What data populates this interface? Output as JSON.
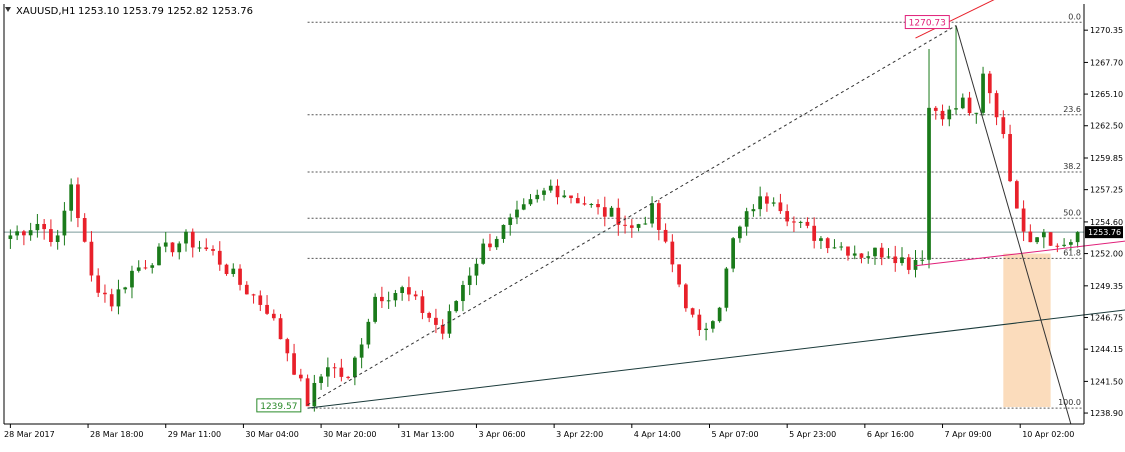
{
  "header": {
    "symbol": "XAUUSD,H1",
    "ohlc": "1253.10 1253.79 1252.82 1253.76"
  },
  "colors": {
    "bull": "#1a7a1a",
    "bear": "#e8202a",
    "fib": "#555555",
    "channel_upper": "#e0207a",
    "trend_red": "#e8202a",
    "support": "#1a3a3a",
    "shade": "#fbdcbc",
    "bid_line": "#7a9a9a"
  },
  "chart_data": {
    "type": "candlestick",
    "title": "XAUUSD,H1",
    "last_price": "1253.76",
    "ylim": [
      1238.0,
      1272.5
    ],
    "y_ticks": [
      "1270.35",
      "1267.70",
      "1265.10",
      "1262.50",
      "1259.85",
      "1257.25",
      "1254.60",
      "1252.00",
      "1249.35",
      "1246.75",
      "1244.15",
      "1241.50",
      "1238.90"
    ],
    "x_ticks": [
      "28 Mar 2017",
      "28 Mar 18:00",
      "29 Mar 11:00",
      "30 Mar 04:00",
      "30 Mar 20:00",
      "31 Mar 13:00",
      "3 Apr 06:00",
      "3 Apr 22:00",
      "4 Apr 14:00",
      "5 Apr 07:00",
      "5 Apr 23:00",
      "6 Apr 16:00",
      "7 Apr 09:00",
      "10 Apr 02:00"
    ],
    "fib_levels": [
      {
        "label": "0.0",
        "price": 1271.0
      },
      {
        "label": "23.6",
        "price": 1263.4
      },
      {
        "label": "38.2",
        "price": 1258.7
      },
      {
        "label": "50.0",
        "price": 1254.9
      },
      {
        "label": "61.8",
        "price": 1251.6
      },
      {
        "label": "100.0",
        "price": 1239.3
      }
    ],
    "annotations": [
      {
        "text": "1270.73",
        "kind": "high-marker"
      },
      {
        "text": "1239.57",
        "kind": "low-marker"
      }
    ],
    "trendlines": [
      {
        "name": "fib-swing",
        "from": [
          44,
          1239.57
        ],
        "to": [
          140,
          1270.73
        ],
        "style": "dashed"
      },
      {
        "name": "support-line",
        "from": [
          44,
          1239.3
        ],
        "to": [
          197,
          1249.5
        ]
      },
      {
        "name": "channel-upper",
        "from": [
          134,
          1251.0
        ],
        "to": [
          197,
          1255.1
        ]
      },
      {
        "name": "red-ray",
        "from": [
          134,
          1269.7
        ],
        "to": [
          148,
          1273.5
        ]
      },
      {
        "name": "drop-line",
        "from": [
          140,
          1270.73
        ],
        "to": [
          157,
          1238.0
        ]
      }
    ],
    "shade_box": {
      "x_from": 147,
      "x_to": 154,
      "y_from": 1239.4,
      "y_to": 1252.0
    },
    "candles": []
  }
}
